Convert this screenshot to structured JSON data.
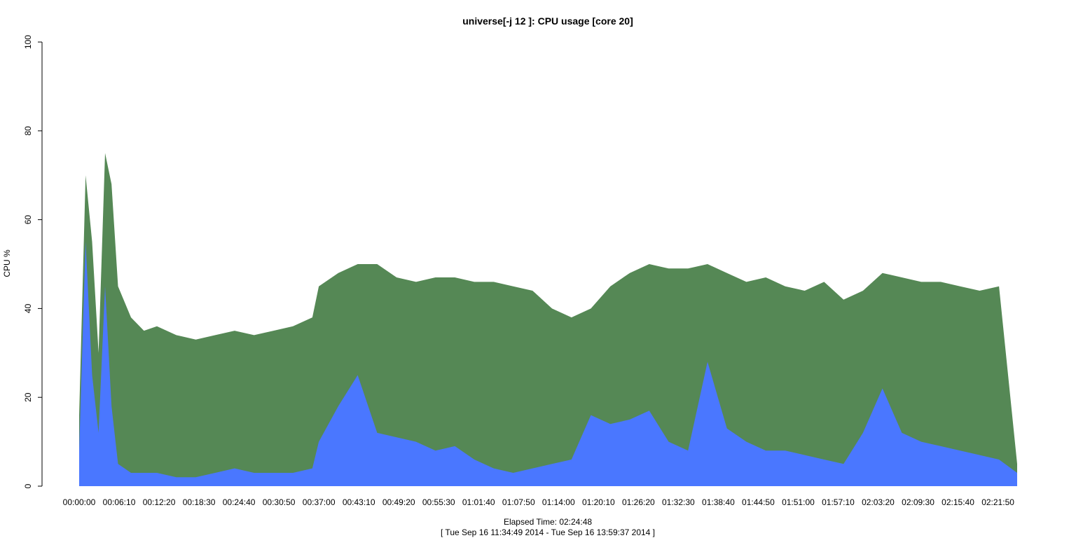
{
  "chart_data": {
    "type": "area",
    "title": "universe[-j 12  ]: CPU usage [core 20]",
    "xlabel": "Elapsed Time: 02:24:48",
    "xlabel_range": "[ Tue Sep 16 11:34:49 2014 - Tue Sep 16 13:59:37 2014 ]",
    "ylabel": "CPU %",
    "ylim": [
      0,
      100
    ],
    "yticks": [
      0,
      20,
      40,
      60,
      80,
      100
    ],
    "xlim": [
      "00:00:00",
      "02:24:48"
    ],
    "xticks": [
      "00:00:00",
      "00:06:10",
      "00:12:20",
      "00:18:30",
      "00:24:40",
      "00:30:50",
      "00:37:00",
      "00:43:10",
      "00:49:20",
      "00:55:30",
      "01:01:40",
      "01:07:50",
      "01:14:00",
      "01:20:10",
      "01:26:20",
      "01:32:30",
      "01:38:40",
      "01:44:50",
      "01:51:00",
      "01:57:10",
      "02:03:20",
      "02:09:30",
      "02:15:40",
      "02:21:50"
    ],
    "series": [
      {
        "color": "#558855",
        "x": [
          "00:00:00",
          "00:01:00",
          "00:02:00",
          "00:03:00",
          "00:04:00",
          "00:05:00",
          "00:06:00",
          "00:08:00",
          "00:10:00",
          "00:12:00",
          "00:15:00",
          "00:18:00",
          "00:21:00",
          "00:24:00",
          "00:27:00",
          "00:30:00",
          "00:33:00",
          "00:36:00",
          "00:37:00",
          "00:40:00",
          "00:43:00",
          "00:46:00",
          "00:49:00",
          "00:52:00",
          "00:55:00",
          "00:58:00",
          "01:01:00",
          "01:04:00",
          "01:07:00",
          "01:10:00",
          "01:13:00",
          "01:16:00",
          "01:19:00",
          "01:22:00",
          "01:25:00",
          "01:28:00",
          "01:31:00",
          "01:34:00",
          "01:37:00",
          "01:40:00",
          "01:43:00",
          "01:46:00",
          "01:49:00",
          "01:52:00",
          "01:55:00",
          "01:58:00",
          "02:01:00",
          "02:04:00",
          "02:07:00",
          "02:10:00",
          "02:13:00",
          "02:16:00",
          "02:19:00",
          "02:22:00",
          "02:24:48"
        ],
        "values": [
          16,
          70,
          55,
          30,
          75,
          68,
          45,
          38,
          35,
          36,
          34,
          33,
          34,
          35,
          34,
          35,
          36,
          38,
          45,
          48,
          50,
          50,
          47,
          46,
          47,
          47,
          46,
          46,
          45,
          44,
          40,
          38,
          40,
          45,
          48,
          50,
          49,
          49,
          50,
          48,
          46,
          47,
          45,
          44,
          46,
          42,
          44,
          48,
          47,
          46,
          46,
          45,
          44,
          45,
          5
        ]
      },
      {
        "color": "#4a77ff",
        "x": [
          "00:00:00",
          "00:01:00",
          "00:02:00",
          "00:03:00",
          "00:04:00",
          "00:05:00",
          "00:06:00",
          "00:08:00",
          "00:10:00",
          "00:12:00",
          "00:15:00",
          "00:18:00",
          "00:21:00",
          "00:24:00",
          "00:27:00",
          "00:30:00",
          "00:33:00",
          "00:36:00",
          "00:37:00",
          "00:40:00",
          "00:43:00",
          "00:46:00",
          "00:49:00",
          "00:52:00",
          "00:55:00",
          "00:58:00",
          "01:01:00",
          "01:04:00",
          "01:07:00",
          "01:10:00",
          "01:13:00",
          "01:16:00",
          "01:19:00",
          "01:22:00",
          "01:25:00",
          "01:28:00",
          "01:31:00",
          "01:34:00",
          "01:37:00",
          "01:40:00",
          "01:43:00",
          "01:46:00",
          "01:49:00",
          "01:52:00",
          "01:55:00",
          "01:58:00",
          "02:01:00",
          "02:04:00",
          "02:07:00",
          "02:10:00",
          "02:13:00",
          "02:16:00",
          "02:19:00",
          "02:22:00",
          "02:24:48"
        ],
        "values": [
          8,
          55,
          25,
          12,
          45,
          18,
          5,
          3,
          3,
          3,
          2,
          2,
          3,
          4,
          3,
          3,
          3,
          4,
          10,
          18,
          25,
          12,
          11,
          10,
          8,
          9,
          6,
          4,
          3,
          4,
          5,
          6,
          16,
          14,
          15,
          17,
          10,
          8,
          28,
          13,
          10,
          8,
          8,
          7,
          6,
          5,
          12,
          22,
          12,
          10,
          9,
          8,
          7,
          6,
          3
        ]
      }
    ],
    "grid": false,
    "legend": "none"
  }
}
